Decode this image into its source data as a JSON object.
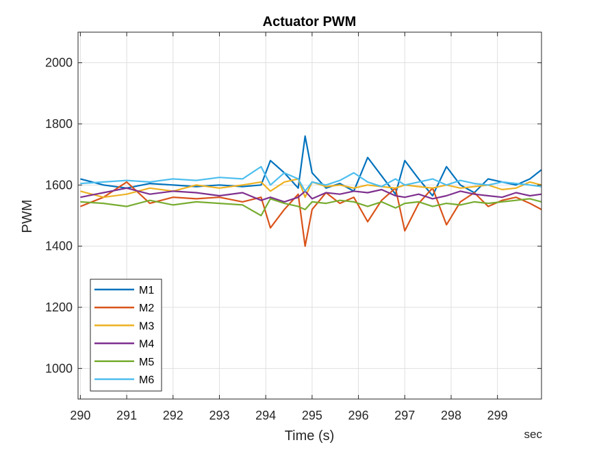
{
  "chart_data": {
    "type": "line",
    "title": "Actuator PWM",
    "xlabel": "Time (s)",
    "ylabel": "PWM",
    "x_unit_label": "sec",
    "xlim": [
      289.95,
      299.95
    ],
    "ylim": [
      900,
      2100
    ],
    "x_ticks": [
      "290",
      "291",
      "292",
      "293",
      "294",
      "295",
      "296",
      "297",
      "298",
      "299"
    ],
    "y_ticks": [
      "1000",
      "1200",
      "1400",
      "1600",
      "1800",
      "2000"
    ],
    "grid": true,
    "legend_position": "bottom-left",
    "series": [
      {
        "name": "M1",
        "color": "#0072BD",
        "x": [
          290.0,
          290.5,
          291.0,
          291.5,
          292.0,
          292.5,
          293.0,
          293.5,
          293.9,
          294.1,
          294.4,
          294.7,
          294.85,
          295.0,
          295.3,
          295.6,
          295.9,
          296.2,
          296.5,
          296.8,
          297.0,
          297.3,
          297.6,
          297.9,
          298.2,
          298.5,
          298.8,
          299.1,
          299.4,
          299.7,
          299.95
        ],
        "values": [
          1620,
          1600,
          1590,
          1605,
          1600,
          1595,
          1600,
          1595,
          1600,
          1680,
          1640,
          1590,
          1760,
          1640,
          1590,
          1605,
          1580,
          1690,
          1630,
          1570,
          1680,
          1620,
          1565,
          1660,
          1600,
          1575,
          1620,
          1610,
          1600,
          1620,
          1650
        ]
      },
      {
        "name": "M2",
        "color": "#D95319",
        "x": [
          290.0,
          290.5,
          291.0,
          291.5,
          292.0,
          292.5,
          293.0,
          293.5,
          293.9,
          294.1,
          294.4,
          294.7,
          294.85,
          295.0,
          295.3,
          295.6,
          295.9,
          296.2,
          296.5,
          296.8,
          297.0,
          297.3,
          297.6,
          297.9,
          298.2,
          298.5,
          298.8,
          299.1,
          299.4,
          299.7,
          299.95
        ],
        "values": [
          1530,
          1560,
          1610,
          1540,
          1560,
          1555,
          1560,
          1545,
          1560,
          1460,
          1520,
          1570,
          1400,
          1520,
          1575,
          1540,
          1560,
          1480,
          1550,
          1590,
          1450,
          1540,
          1590,
          1470,
          1545,
          1575,
          1530,
          1550,
          1560,
          1540,
          1520
        ]
      },
      {
        "name": "M3",
        "color": "#EDB120",
        "x": [
          290.0,
          290.5,
          291.0,
          291.5,
          292.0,
          292.5,
          293.0,
          293.5,
          293.9,
          294.1,
          294.4,
          294.7,
          294.85,
          295.0,
          295.3,
          295.6,
          295.9,
          296.2,
          296.5,
          296.8,
          297.0,
          297.3,
          297.6,
          297.9,
          298.2,
          298.5,
          298.8,
          299.1,
          299.4,
          299.7,
          299.95
        ],
        "values": [
          1580,
          1560,
          1570,
          1590,
          1580,
          1600,
          1590,
          1600,
          1610,
          1580,
          1610,
          1620,
          1560,
          1610,
          1595,
          1600,
          1590,
          1600,
          1595,
          1590,
          1600,
          1595,
          1590,
          1600,
          1590,
          1595,
          1600,
          1585,
          1590,
          1610,
          1600
        ]
      },
      {
        "name": "M4",
        "color": "#7E2F8E",
        "x": [
          290.0,
          290.5,
          291.0,
          291.5,
          292.0,
          292.5,
          293.0,
          293.5,
          293.9,
          294.1,
          294.4,
          294.7,
          294.85,
          295.0,
          295.3,
          295.6,
          295.9,
          296.2,
          296.5,
          296.8,
          297.0,
          297.3,
          297.6,
          297.9,
          298.2,
          298.5,
          298.8,
          299.1,
          299.4,
          299.7,
          299.95
        ],
        "values": [
          1560,
          1575,
          1590,
          1570,
          1580,
          1575,
          1565,
          1575,
          1550,
          1560,
          1545,
          1560,
          1580,
          1555,
          1575,
          1570,
          1580,
          1575,
          1585,
          1565,
          1560,
          1570,
          1555,
          1565,
          1580,
          1570,
          1565,
          1560,
          1575,
          1565,
          1570
        ]
      },
      {
        "name": "M5",
        "color": "#77AC30",
        "x": [
          290.0,
          290.5,
          291.0,
          291.5,
          292.0,
          292.5,
          293.0,
          293.5,
          293.9,
          294.1,
          294.4,
          294.7,
          294.85,
          295.0,
          295.3,
          295.6,
          295.9,
          296.2,
          296.5,
          296.8,
          297.0,
          297.3,
          297.6,
          297.9,
          298.2,
          298.5,
          298.8,
          299.1,
          299.4,
          299.7,
          299.95
        ],
        "values": [
          1545,
          1540,
          1530,
          1550,
          1535,
          1545,
          1540,
          1535,
          1500,
          1555,
          1540,
          1530,
          1520,
          1545,
          1540,
          1550,
          1545,
          1530,
          1545,
          1525,
          1540,
          1545,
          1530,
          1540,
          1535,
          1545,
          1540,
          1545,
          1550,
          1555,
          1545
        ]
      },
      {
        "name": "M6",
        "color": "#4DBEEE",
        "x": [
          290.0,
          290.5,
          291.0,
          291.5,
          292.0,
          292.5,
          293.0,
          293.5,
          293.9,
          294.1,
          294.4,
          294.7,
          294.85,
          295.0,
          295.3,
          295.6,
          295.9,
          296.2,
          296.5,
          296.8,
          297.0,
          297.3,
          297.6,
          297.9,
          298.2,
          298.5,
          298.8,
          299.1,
          299.4,
          299.7,
          299.95
        ],
        "values": [
          1605,
          1610,
          1615,
          1610,
          1620,
          1615,
          1625,
          1620,
          1660,
          1600,
          1640,
          1620,
          1580,
          1610,
          1600,
          1615,
          1640,
          1610,
          1595,
          1620,
          1600,
          1610,
          1620,
          1600,
          1615,
          1605,
          1600,
          1610,
          1605,
          1600,
          1595
        ]
      }
    ]
  }
}
